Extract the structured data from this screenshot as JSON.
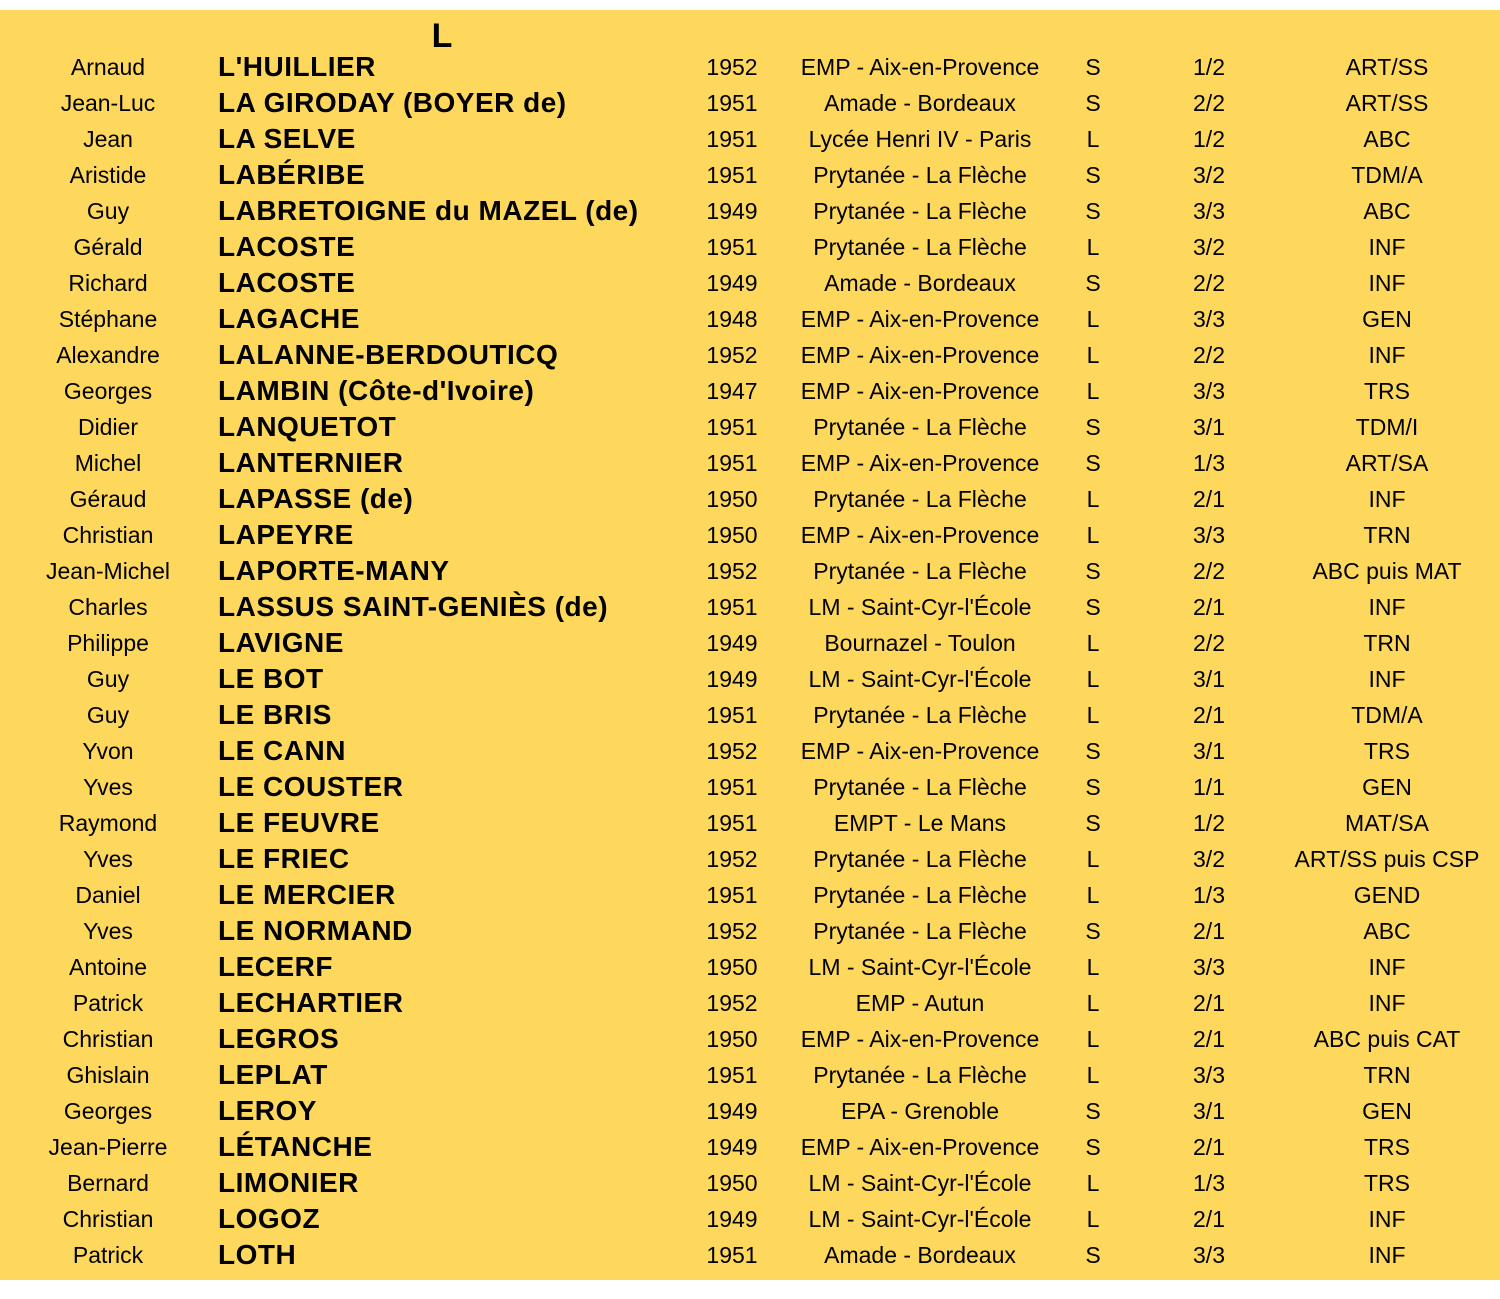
{
  "header": {
    "letter": "L"
  },
  "table": {
    "rows": [
      [
        "Arnaud",
        "L'HUILLIER",
        "1952",
        "EMP - Aix-en-Provence",
        "S",
        "1/2",
        "ART/SS"
      ],
      [
        "Jean-Luc",
        "LA GIRODAY (BOYER de)",
        "1951",
        "Amade - Bordeaux",
        "S",
        "2/2",
        "ART/SS"
      ],
      [
        "Jean",
        "LA SELVE",
        "1951",
        "Lycée Henri IV - Paris",
        "L",
        "1/2",
        "ABC"
      ],
      [
        "Aristide",
        "LABÉRIBE",
        "1951",
        "Prytanée - La Flèche",
        "S",
        "3/2",
        "TDM/A"
      ],
      [
        "Guy",
        "LABRETOIGNE du MAZEL (de)",
        "1949",
        "Prytanée - La Flèche",
        "S",
        "3/3",
        "ABC"
      ],
      [
        "Gérald",
        "LACOSTE",
        "1951",
        "Prytanée - La Flèche",
        "L",
        "3/2",
        "INF"
      ],
      [
        "Richard",
        "LACOSTE",
        "1949",
        "Amade - Bordeaux",
        "S",
        "2/2",
        "INF"
      ],
      [
        "Stéphane",
        "LAGACHE",
        "1948",
        "EMP - Aix-en-Provence",
        "L",
        "3/3",
        "GEN"
      ],
      [
        "Alexandre",
        "LALANNE-BERDOUTICQ",
        "1952",
        "EMP - Aix-en-Provence",
        "L",
        "2/2",
        "INF"
      ],
      [
        "Georges",
        "LAMBIN (Côte-d'Ivoire)",
        "1947",
        "EMP - Aix-en-Provence",
        "L",
        "3/3",
        "TRS"
      ],
      [
        "Didier",
        "LANQUETOT",
        "1951",
        "Prytanée - La Flèche",
        "S",
        "3/1",
        "TDM/I"
      ],
      [
        "Michel",
        "LANTERNIER",
        "1951",
        "EMP - Aix-en-Provence",
        "S",
        "1/3",
        "ART/SA"
      ],
      [
        "Géraud",
        "LAPASSE (de)",
        "1950",
        "Prytanée - La Flèche",
        "L",
        "2/1",
        "INF"
      ],
      [
        "Christian",
        "LAPEYRE",
        "1950",
        "EMP - Aix-en-Provence",
        "L",
        "3/3",
        "TRN"
      ],
      [
        "Jean-Michel",
        "LAPORTE-MANY",
        "1952",
        "Prytanée - La Flèche",
        "S",
        "2/2",
        "ABC puis MAT"
      ],
      [
        "Charles",
        "LASSUS SAINT-GENIÈS (de)",
        "1951",
        "LM - Saint-Cyr-l'École",
        "S",
        "2/1",
        "INF"
      ],
      [
        "Philippe",
        "LAVIGNE",
        "1949",
        "Bournazel - Toulon",
        "L",
        "2/2",
        "TRN"
      ],
      [
        "Guy",
        "LE BOT",
        "1949",
        "LM - Saint-Cyr-l'École",
        "L",
        "3/1",
        "INF"
      ],
      [
        "Guy",
        "LE BRIS",
        "1951",
        "Prytanée - La Flèche",
        "L",
        "2/1",
        "TDM/A"
      ],
      [
        "Yvon",
        "LE CANN",
        "1952",
        "EMP - Aix-en-Provence",
        "S",
        "3/1",
        "TRS"
      ],
      [
        "Yves",
        "LE COUSTER",
        "1951",
        "Prytanée - La Flèche",
        "S",
        "1/1",
        "GEN"
      ],
      [
        "Raymond",
        "LE FEUVRE",
        "1951",
        "EMPT - Le Mans",
        "S",
        "1/2",
        "MAT/SA"
      ],
      [
        "Yves",
        "LE FRIEC",
        "1952",
        "Prytanée - La Flèche",
        "L",
        "3/2",
        "ART/SS puis CSP"
      ],
      [
        "Daniel",
        "LE MERCIER",
        "1951",
        "Prytanée - La Flèche",
        "L",
        "1/3",
        "GEND"
      ],
      [
        "Yves",
        "LE NORMAND",
        "1952",
        "Prytanée - La Flèche",
        "S",
        "2/1",
        "ABC"
      ],
      [
        "Antoine",
        "LECERF",
        "1950",
        "LM - Saint-Cyr-l'École",
        "L",
        "3/3",
        "INF"
      ],
      [
        "Patrick",
        "LECHARTIER",
        "1952",
        "EMP - Autun",
        "L",
        "2/1",
        "INF"
      ],
      [
        "Christian",
        "LEGROS",
        "1950",
        "EMP - Aix-en-Provence",
        "L",
        "2/1",
        "ABC puis CAT"
      ],
      [
        "Ghislain",
        "LEPLAT",
        "1951",
        "Prytanée - La Flèche",
        "L",
        "3/3",
        "TRN"
      ],
      [
        "Georges",
        "LEROY",
        "1949",
        "EPA - Grenoble",
        "S",
        "3/1",
        "GEN"
      ],
      [
        "Jean-Pierre",
        "LÉTANCHE",
        "1949",
        "EMP - Aix-en-Provence",
        "S",
        "2/1",
        "TRS"
      ],
      [
        "Bernard",
        "LIMONIER",
        "1950",
        "LM - Saint-Cyr-l'École",
        "L",
        "1/3",
        "TRS"
      ],
      [
        "Christian",
        "LOGOZ",
        "1949",
        "LM - Saint-Cyr-l'École",
        "L",
        "2/1",
        "INF"
      ],
      [
        "Patrick",
        "LOTH",
        "1951",
        "Amade - Bordeaux",
        "S",
        "3/3",
        "INF"
      ]
    ]
  }
}
